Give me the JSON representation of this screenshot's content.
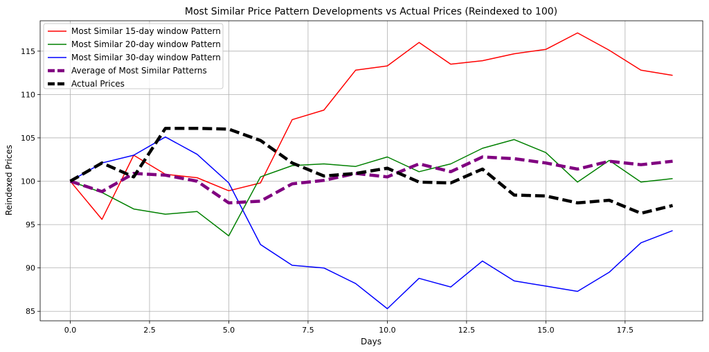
{
  "chart_data": {
    "type": "line",
    "title": "Most Similar Price Pattern Developments vs Actual Prices (Reindexed to 100)",
    "xlabel": "Days",
    "ylabel": "Reindexed Prices",
    "xlim": [
      -0.95,
      19.95
    ],
    "ylim": [
      83.9,
      118.5
    ],
    "x_ticks": [
      0.0,
      2.5,
      5.0,
      7.5,
      10.0,
      12.5,
      15.0,
      17.5
    ],
    "x_tick_labels": [
      "0.0",
      "2.5",
      "5.0",
      "7.5",
      "10.0",
      "12.5",
      "15.0",
      "17.5"
    ],
    "y_ticks": [
      85,
      90,
      95,
      100,
      105,
      110,
      115
    ],
    "y_tick_labels": [
      "85",
      "90",
      "95",
      "100",
      "105",
      "110",
      "115"
    ],
    "grid": true,
    "legend_position": "top-left",
    "x": [
      0,
      1,
      2,
      3,
      4,
      5,
      6,
      7,
      8,
      9,
      10,
      11,
      12,
      13,
      14,
      15,
      16,
      17,
      18,
      19
    ],
    "series": [
      {
        "name": "Most Similar 15-day window Pattern",
        "color": "#ff0000",
        "style": "solid",
        "values": [
          100.0,
          95.6,
          103.0,
          100.8,
          100.4,
          98.9,
          99.8,
          107.1,
          108.2,
          112.8,
          113.3,
          116.0,
          113.5,
          113.9,
          114.7,
          115.2,
          117.1,
          115.1,
          112.8,
          112.2
        ]
      },
      {
        "name": "Most Similar 20-day window Pattern",
        "color": "#008000",
        "style": "solid",
        "values": [
          100.0,
          98.7,
          96.8,
          96.2,
          96.5,
          93.7,
          100.5,
          101.8,
          102.0,
          101.7,
          102.8,
          101.1,
          102.0,
          103.8,
          104.8,
          103.3,
          99.9,
          102.4,
          99.9,
          100.3
        ]
      },
      {
        "name": "Most Similar 30-day window Pattern",
        "color": "#0000ff",
        "style": "solid",
        "values": [
          100.0,
          102.1,
          103.0,
          105.1,
          103.1,
          99.8,
          92.7,
          90.3,
          90.0,
          88.2,
          85.3,
          88.8,
          87.8,
          90.8,
          88.5,
          87.9,
          87.3,
          89.5,
          92.9,
          94.3
        ]
      },
      {
        "name": "Average of Most Similar Patterns",
        "color": "#800080",
        "style": "dashed-thick",
        "values": [
          100.0,
          98.8,
          100.9,
          100.7,
          100.0,
          97.5,
          97.7,
          99.7,
          100.1,
          100.9,
          100.5,
          102.0,
          101.1,
          102.8,
          102.6,
          102.1,
          101.4,
          102.3,
          101.9,
          102.3
        ]
      },
      {
        "name": "Actual Prices",
        "color": "#000000",
        "style": "dashed-thick",
        "values": [
          100.0,
          102.1,
          100.5,
          106.1,
          106.1,
          106.0,
          104.7,
          102.1,
          100.6,
          100.9,
          101.5,
          99.9,
          99.8,
          101.4,
          98.4,
          98.3,
          97.5,
          97.8,
          96.3,
          97.2
        ]
      }
    ]
  }
}
